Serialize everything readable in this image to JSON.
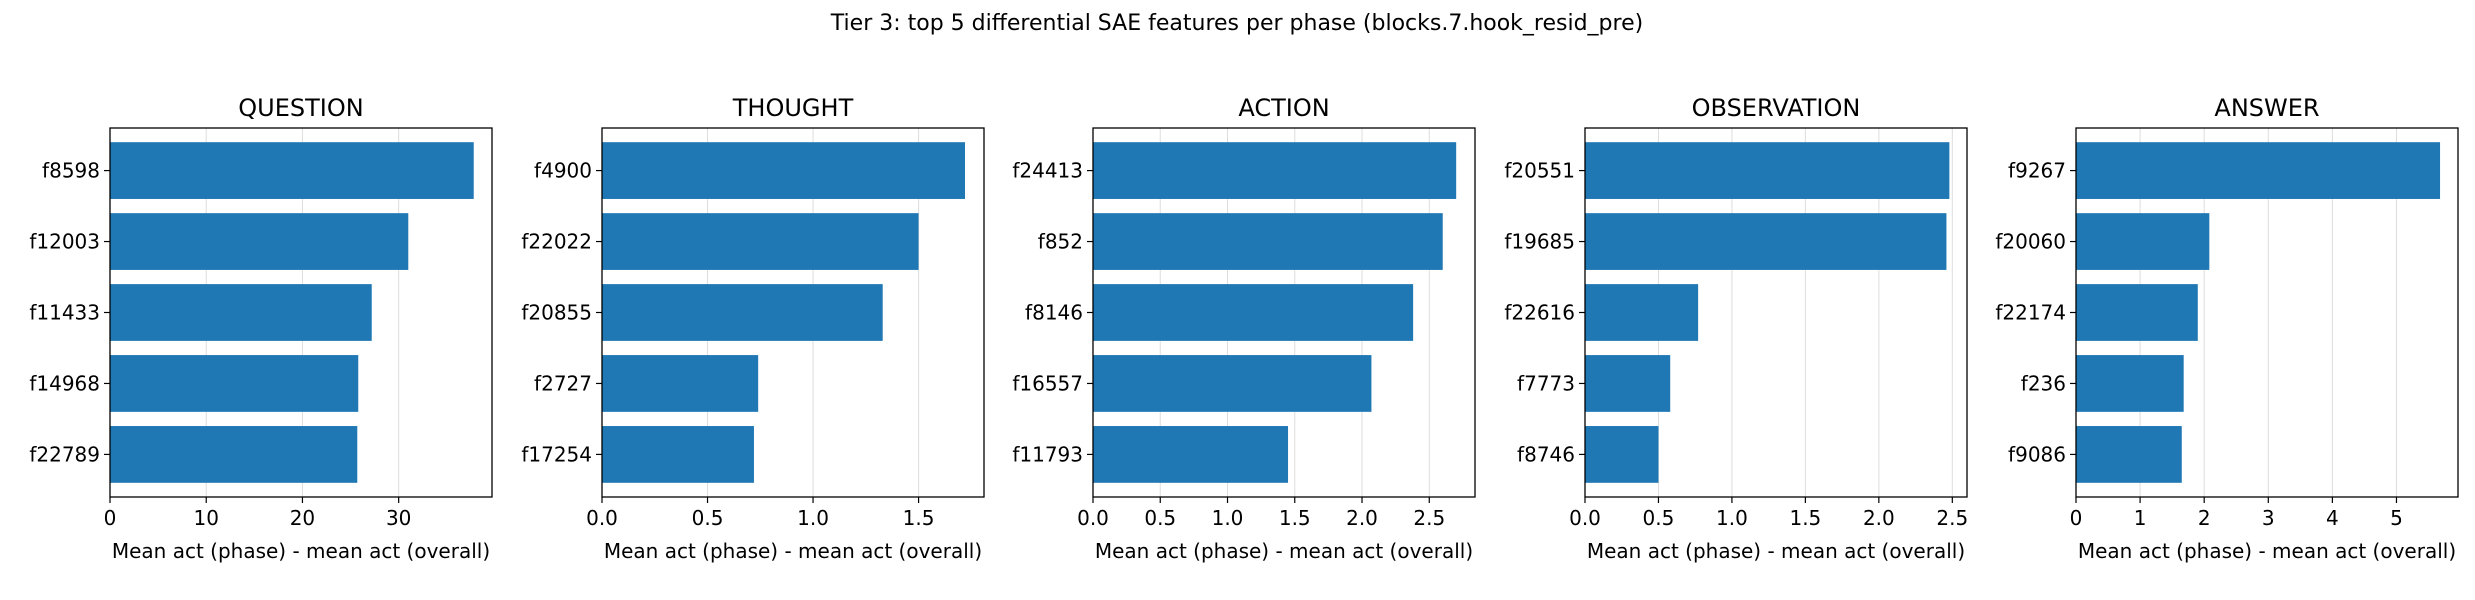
{
  "figure_title": "Tier 3: top 5 differential SAE features per phase (blocks.7.hook_resid_pre)",
  "colors": {
    "bar": "#1f77b4",
    "grid": "#dddddd",
    "axis": "#000000"
  },
  "chart_data": [
    {
      "type": "bar",
      "orientation": "horizontal",
      "title": "QUESTION",
      "xlabel": "Mean act (phase) - mean act (overall)",
      "categories": [
        "f8598",
        "f12003",
        "f11433",
        "f14968",
        "f22789"
      ],
      "values": [
        37.8,
        31.0,
        27.2,
        25.8,
        25.7
      ],
      "xlim": [
        0,
        39.7
      ],
      "xticks": [
        0,
        10,
        20,
        30
      ],
      "xtick_labels": [
        "0",
        "10",
        "20",
        "30"
      ],
      "grid": "x"
    },
    {
      "type": "bar",
      "orientation": "horizontal",
      "title": "THOUGHT",
      "xlabel": "Mean act (phase) - mean act (overall)",
      "categories": [
        "f4900",
        "f22022",
        "f20855",
        "f2727",
        "f17254"
      ],
      "values": [
        1.72,
        1.5,
        1.33,
        0.74,
        0.72
      ],
      "xlim": [
        0,
        1.81
      ],
      "xticks": [
        0,
        0.5,
        1.0,
        1.5
      ],
      "xtick_labels": [
        "0.0",
        "0.5",
        "1.0",
        "1.5"
      ],
      "grid": "x"
    },
    {
      "type": "bar",
      "orientation": "horizontal",
      "title": "ACTION",
      "xlabel": "Mean act (phase) - mean act (overall)",
      "categories": [
        "f24413",
        "f852",
        "f8146",
        "f16557",
        "f11793"
      ],
      "values": [
        2.7,
        2.6,
        2.38,
        2.07,
        1.45
      ],
      "xlim": [
        0,
        2.84
      ],
      "xticks": [
        0,
        0.5,
        1.0,
        1.5,
        2.0,
        2.5
      ],
      "xtick_labels": [
        "0.0",
        "0.5",
        "1.0",
        "1.5",
        "2.0",
        "2.5"
      ],
      "grid": "x"
    },
    {
      "type": "bar",
      "orientation": "horizontal",
      "title": "OBSERVATION",
      "xlabel": "Mean act (phase) - mean act (overall)",
      "categories": [
        "f20551",
        "f19685",
        "f22616",
        "f7773",
        "f8746"
      ],
      "values": [
        2.48,
        2.46,
        0.77,
        0.58,
        0.5
      ],
      "xlim": [
        0,
        2.6
      ],
      "xticks": [
        0,
        0.5,
        1.0,
        1.5,
        2.0,
        2.5
      ],
      "xtick_labels": [
        "0.0",
        "0.5",
        "1.0",
        "1.5",
        "2.0",
        "2.5"
      ],
      "grid": "x"
    },
    {
      "type": "bar",
      "orientation": "horizontal",
      "title": "ANSWER",
      "xlabel": "Mean act (phase) - mean act (overall)",
      "categories": [
        "f9267",
        "f20060",
        "f22174",
        "f236",
        "f9086"
      ],
      "values": [
        5.68,
        2.08,
        1.9,
        1.68,
        1.65
      ],
      "xlim": [
        0,
        5.96
      ],
      "xticks": [
        0,
        1,
        2,
        3,
        4,
        5
      ],
      "xtick_labels": [
        "0",
        "1",
        "2",
        "3",
        "4",
        "5"
      ],
      "grid": "x"
    }
  ]
}
